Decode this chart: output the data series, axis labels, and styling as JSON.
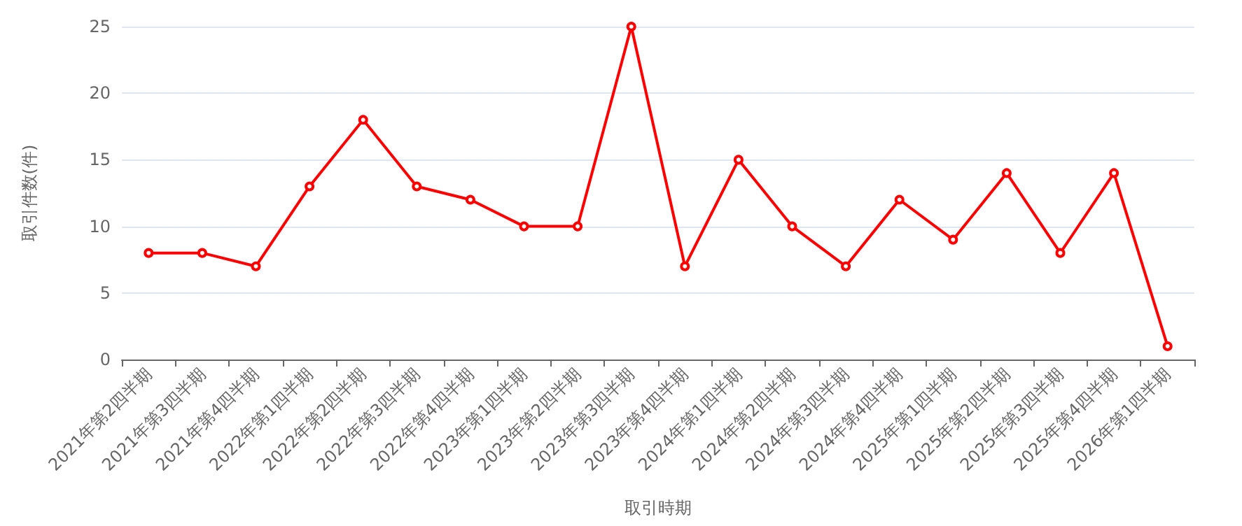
{
  "chart_data": {
    "type": "line",
    "xlabel": "取引時期",
    "ylabel": "取引件数(件)",
    "categories": [
      "2021年第2四半期",
      "2021年第3四半期",
      "2021年第4四半期",
      "2022年第1四半期",
      "2022年第2四半期",
      "2022年第3四半期",
      "2022年第4四半期",
      "2023年第1四半期",
      "2023年第2四半期",
      "2023年第3四半期",
      "2023年第4四半期",
      "2024年第1四半期",
      "2024年第2四半期",
      "2024年第3四半期",
      "2024年第4四半期",
      "2025年第1四半期",
      "2025年第2四半期",
      "2025年第3四半期",
      "2025年第4四半期",
      "2026年第1四半期"
    ],
    "series": [
      {
        "color": "#ff0000",
        "values": [
          8,
          8,
          7,
          13,
          18,
          13,
          12,
          10,
          10,
          25,
          7,
          15,
          10,
          7,
          12,
          9,
          14,
          8,
          14,
          1
        ]
      }
    ],
    "ylim": [
      0,
      25
    ],
    "yticks": [
      0,
      5,
      10,
      15,
      20,
      25
    ],
    "grid": "y",
    "marker": "circle",
    "line_style": "solid"
  }
}
